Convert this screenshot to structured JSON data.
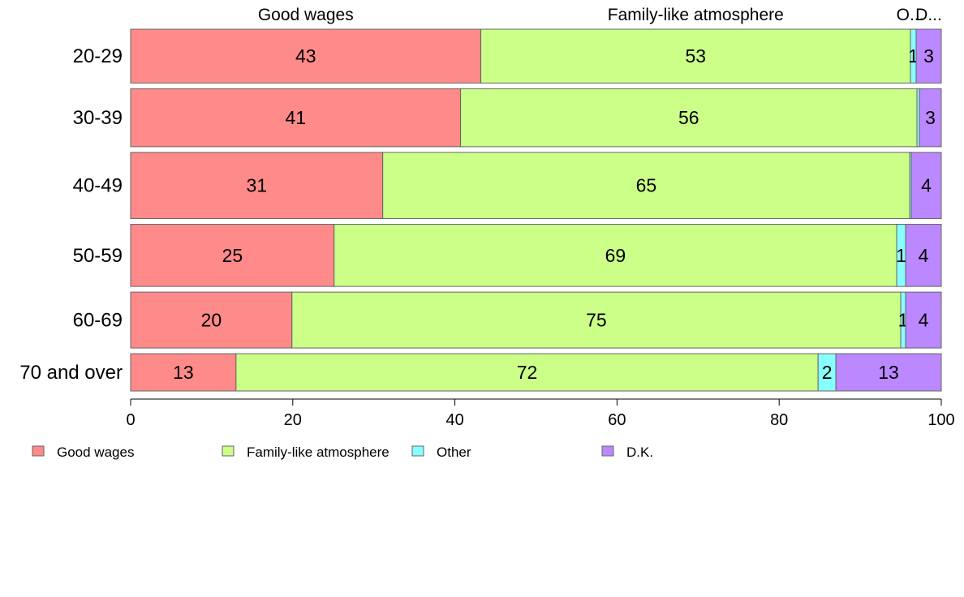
{
  "chart_data": {
    "type": "bar",
    "orientation": "horizontal",
    "stacked": true,
    "categories": [
      "20-29",
      "30-39",
      "40-49",
      "50-59",
      "60-69",
      "70 and over"
    ],
    "series": [
      {
        "name": "Good wages",
        "color": "#ff8a8a",
        "values": [
          43.2,
          40.7,
          31.1,
          25.1,
          19.9,
          13.0
        ],
        "labels": [
          "43",
          "41",
          "31",
          "25",
          "20",
          "13"
        ]
      },
      {
        "name": "Family-like atmosphere",
        "color": "#ccff88",
        "values": [
          53.0,
          56.3,
          65.0,
          69.4,
          75.1,
          71.8
        ],
        "labels": [
          "53",
          "56",
          "65",
          "69",
          "75",
          "72"
        ]
      },
      {
        "name": "Other",
        "color": "#88ffff",
        "values": [
          0.7,
          0.3,
          0.2,
          1.1,
          0.6,
          2.2
        ],
        "labels": [
          "1",
          "",
          "",
          "1",
          "1",
          "2"
        ]
      },
      {
        "name": "D.K.",
        "color": "#bb88ff",
        "values": [
          3.1,
          2.7,
          3.7,
          4.4,
          4.4,
          13.0
        ],
        "labels": [
          "3",
          "3",
          "4",
          "4",
          "4",
          "13"
        ]
      }
    ],
    "row_weights": [
      0.26,
      0.28,
      0.32,
      0.3,
      0.27,
      0.18
    ],
    "top_labels": [
      "Good wages",
      "Family-like atmosphere",
      "O...",
      "D..."
    ],
    "x_ticks": [
      "0",
      "20",
      "40",
      "60",
      "80",
      "100"
    ],
    "xlim": [
      0,
      100
    ],
    "legend": {
      "position": "bottom",
      "items": [
        "Good wages",
        "Family-like atmosphere",
        "Other",
        "D.K."
      ]
    }
  }
}
